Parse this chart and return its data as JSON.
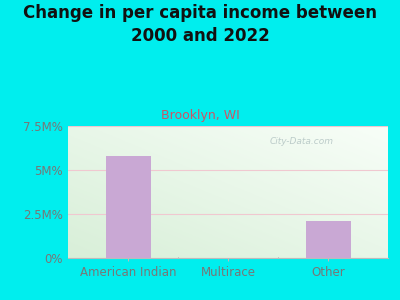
{
  "title": "Change in per capita income between\n2000 and 2022",
  "subtitle": "Brooklyn, WI",
  "categories": [
    "American Indian",
    "Multirace",
    "Other"
  ],
  "values": [
    5800000,
    0,
    2100000
  ],
  "bar_color": "#c9a8d4",
  "bg_color": "#00EEEE",
  "plot_bg_left": "#e8f5e2",
  "plot_bg_right": "#f8fdf8",
  "title_color": "#111111",
  "subtitle_color": "#cc5566",
  "tick_color": "#777777",
  "grid_color": "#f0c8d0",
  "ylim": [
    0,
    7500000
  ],
  "yticks": [
    0,
    2500000,
    5000000,
    7500000
  ],
  "ytick_labels": [
    "0%",
    "2.5M%",
    "5M%",
    "7.5M%"
  ],
  "watermark": "City-Data.com",
  "title_fontsize": 12,
  "subtitle_fontsize": 9,
  "tick_fontsize": 8.5
}
